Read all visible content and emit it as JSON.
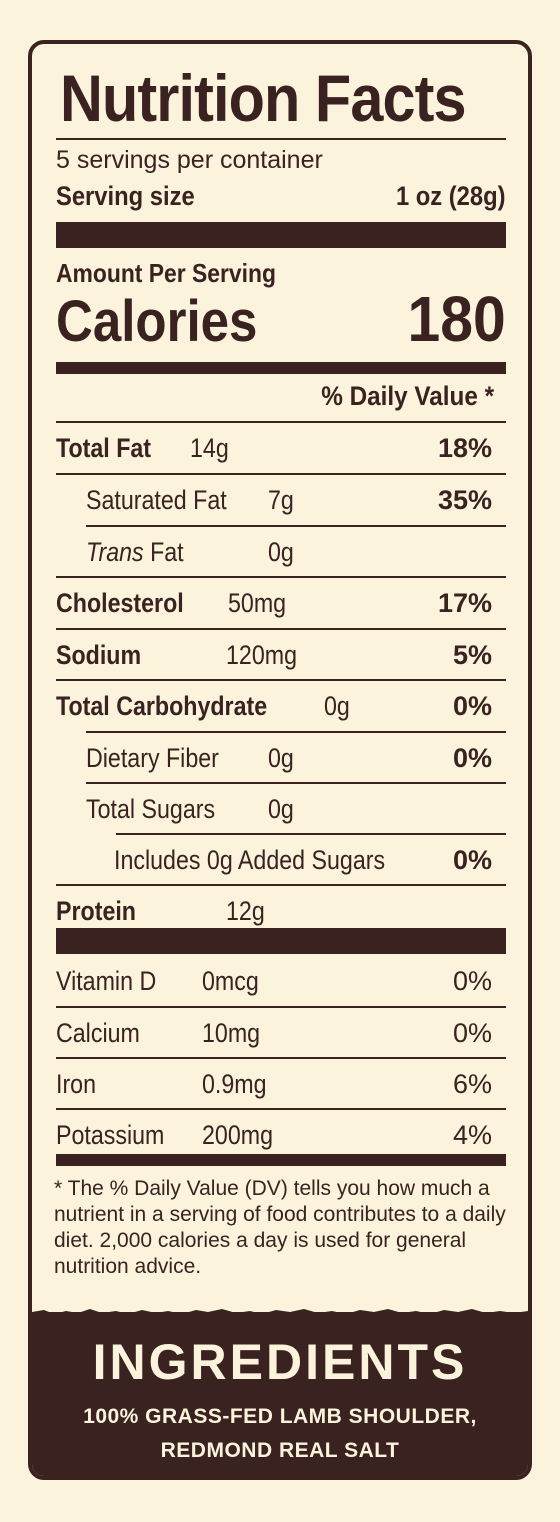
{
  "title": "Nutrition Facts",
  "servings_per_container": "5 servings per container",
  "serving_size_label": "Serving size",
  "serving_size_value": "1 oz (28g)",
  "amount_per_serving": "Amount Per Serving",
  "calories_label": "Calories",
  "calories_value": "180",
  "daily_value_header": "% Daily Value *",
  "nutrients": [
    {
      "label": "Total Fat",
      "amount": "14g",
      "pct": "18%"
    },
    {
      "label": "Saturated Fat",
      "amount": "7g",
      "pct": "35%"
    },
    {
      "label_italic": "Trans",
      "label": " Fat",
      "amount": "0g",
      "pct": ""
    },
    {
      "label": "Cholesterol",
      "amount": "50mg",
      "pct": "17%"
    },
    {
      "label": "Sodium",
      "amount": "120mg",
      "pct": "5%"
    },
    {
      "label": "Total Carbohydrate",
      "amount": "0g",
      "pct": "0%"
    },
    {
      "label": "Dietary Fiber",
      "amount": "0g",
      "pct": "0%"
    },
    {
      "label": "Total Sugars",
      "amount": "0g",
      "pct": ""
    },
    {
      "label": "Includes 0g Added Sugars",
      "amount": "",
      "pct": "0%"
    },
    {
      "label": "Protein",
      "amount": "12g",
      "pct": ""
    }
  ],
  "vitamins": [
    {
      "label": "Vitamin D",
      "amount": "0mcg",
      "pct": "0%"
    },
    {
      "label": "Calcium",
      "amount": "10mg",
      "pct": "0%"
    },
    {
      "label": "Iron",
      "amount": "0.9mg",
      "pct": "6%"
    },
    {
      "label": "Potassium",
      "amount": "200mg",
      "pct": "4%"
    }
  ],
  "footnote": "* The % Daily Value (DV) tells you how much a nutrient in a serving of food contributes to a daily diet. 2,000 calories a day is used for general nutrition advice.",
  "ingredients": {
    "title": "INGREDIENTS",
    "line1": "100% GRASS-FED LAMB SHOULDER,",
    "line2": "REDMOND REAL SALT"
  },
  "colors": {
    "background": "#fbf3dc",
    "ink": "#3a2220"
  }
}
